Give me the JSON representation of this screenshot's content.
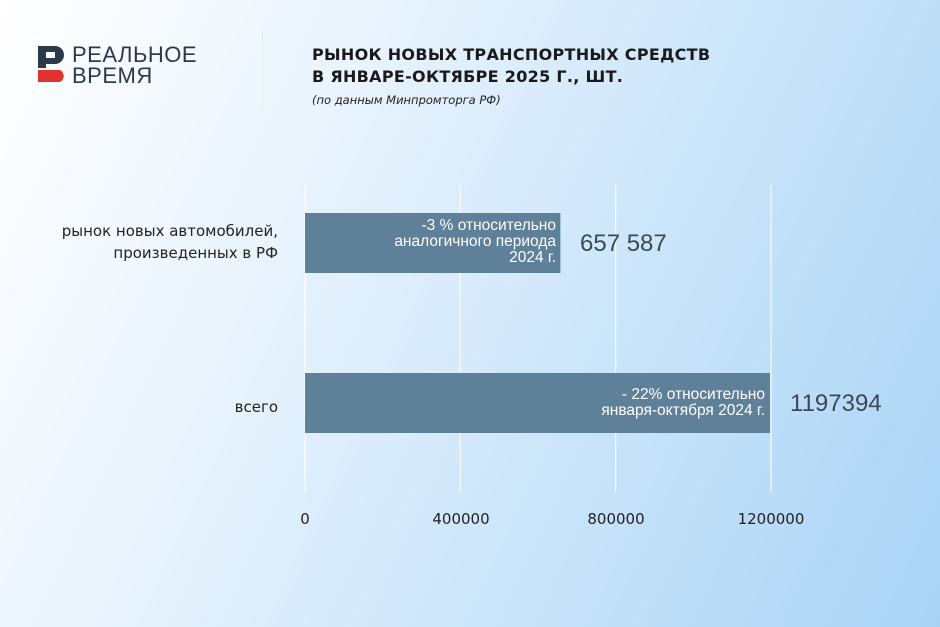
{
  "logo": {
    "line1": "РЕАЛЬНОЕ",
    "line2": "ВРЕМЯ"
  },
  "chart_data": {
    "type": "bar",
    "orientation": "horizontal",
    "title": "РЫНОК НОВЫХ ТРАНСПОРТНЫХ СРЕДСТВ В ЯНВАРЕ-ОКТЯБРЕ 2025 Г., ШТ.",
    "title_lines": [
      "РЫНОК НОВЫХ ТРАНСПОРТНЫХ СРЕДСТВ",
      "В ЯНВАРЕ-ОКТЯБРЕ 2025 Г., ШТ."
    ],
    "subtitle": "(по данным Минпромторга РФ)",
    "categories": [
      "рынок новых автомобилей, произведенных в РФ",
      "всего"
    ],
    "category_lines": [
      [
        "рынок новых автомобилей,",
        "произведенных в РФ"
      ],
      [
        "всего"
      ]
    ],
    "values": [
      657587,
      1197394
    ],
    "value_labels": [
      "657 587",
      "1197394"
    ],
    "annotations": [
      [
        "-3 % относительно",
        "аналогичного периода",
        "2024 г."
      ],
      [
        "- 22% относительно",
        "января-октября 2024 г."
      ]
    ],
    "xlim": [
      0,
      1200000
    ],
    "xticks": [
      0,
      400000,
      800000,
      1200000
    ],
    "xtick_labels": [
      "0",
      "400000",
      "800000",
      "1200000"
    ],
    "grid": true,
    "bar_color": "#5f8099"
  }
}
